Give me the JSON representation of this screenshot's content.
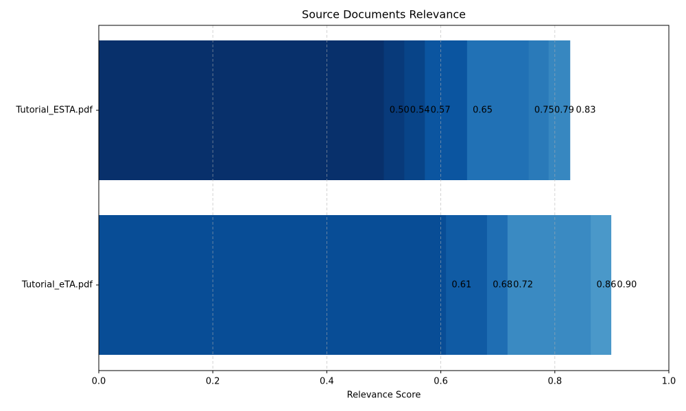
{
  "chart_data": {
    "type": "overlapping-barh",
    "title": "Source Documents Relevance",
    "x_label": "Relevance Score",
    "categories": [
      "Tutorial_ESTA.pdf",
      "Tutorial_eTA.pdf"
    ],
    "values": [
      [
        0.5,
        0.536,
        0.572,
        0.646,
        0.754,
        0.789,
        0.827
      ],
      [
        0.609,
        0.681,
        0.717,
        0.863,
        0.899
      ]
    ],
    "value_labels": [
      [
        "0.50",
        "0.54",
        "0.57",
        "0.65",
        "0.75",
        "0.79",
        "0.83"
      ],
      [
        "0.61",
        "0.68",
        "0.72",
        "0.86",
        "0.90"
      ]
    ],
    "colors": [
      [
        "#08306b",
        "#083a7a",
        "#084488",
        "#0b55a0",
        "#2171b5",
        "#2a7ab9",
        "#3787c0"
      ],
      [
        "#084d96",
        "#105ba4",
        "#1f6eb3",
        "#3a8ac2",
        "#4a98c9"
      ]
    ],
    "xlim": [
      0,
      1
    ],
    "xticks": [
      {
        "value": 0,
        "label": "0.0"
      },
      0.2,
      0.4,
      0.6,
      0.8,
      {
        "value": 1,
        "label": "1.0"
      }
    ],
    "grid": true
  }
}
